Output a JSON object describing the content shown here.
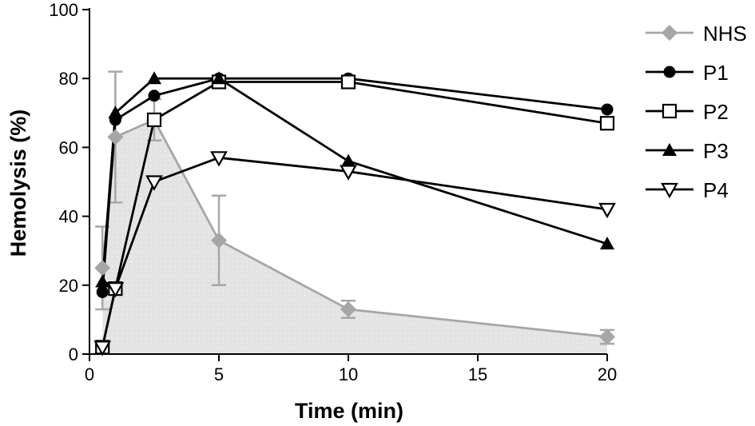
{
  "chart_data": {
    "type": "line",
    "title": "",
    "xlabel": "Time (min)",
    "ylabel": "Hemolysis (%)",
    "xlim": [
      0,
      20
    ],
    "ylim": [
      0,
      100
    ],
    "x_ticks": [
      0,
      5,
      10,
      15,
      20
    ],
    "y_ticks": [
      0,
      20,
      40,
      60,
      80,
      100
    ],
    "grid": false,
    "legend_position": "right",
    "series": [
      {
        "name": "NHS",
        "marker": "diamond",
        "color": "#a6a6a6",
        "area_fill": "#e3e3e3",
        "x": [
          0.5,
          1,
          2.5,
          5,
          10,
          20
        ],
        "y": [
          25,
          63,
          68,
          33,
          13,
          5
        ],
        "error": [
          12,
          19,
          6,
          13,
          2.5,
          2
        ]
      },
      {
        "name": "P1",
        "marker": "circle",
        "color": "#000000",
        "x": [
          0.5,
          1,
          2.5,
          5,
          10,
          20
        ],
        "y": [
          18,
          68,
          75,
          80,
          80,
          71
        ]
      },
      {
        "name": "P2",
        "marker": "square-open",
        "color": "#000000",
        "x": [
          0.5,
          1,
          2.5,
          5,
          10,
          20
        ],
        "y": [
          2,
          19,
          68,
          79,
          79,
          67
        ]
      },
      {
        "name": "P3",
        "marker": "triangle-up",
        "color": "#000000",
        "x": [
          0.5,
          1,
          2.5,
          5,
          10,
          20
        ],
        "y": [
          21,
          70,
          80,
          80,
          56,
          32
        ]
      },
      {
        "name": "P4",
        "marker": "triangle-down-open",
        "color": "#000000",
        "x": [
          0.5,
          1,
          2.5,
          5,
          10,
          20
        ],
        "y": [
          2,
          19,
          50,
          57,
          53,
          42
        ]
      }
    ]
  }
}
